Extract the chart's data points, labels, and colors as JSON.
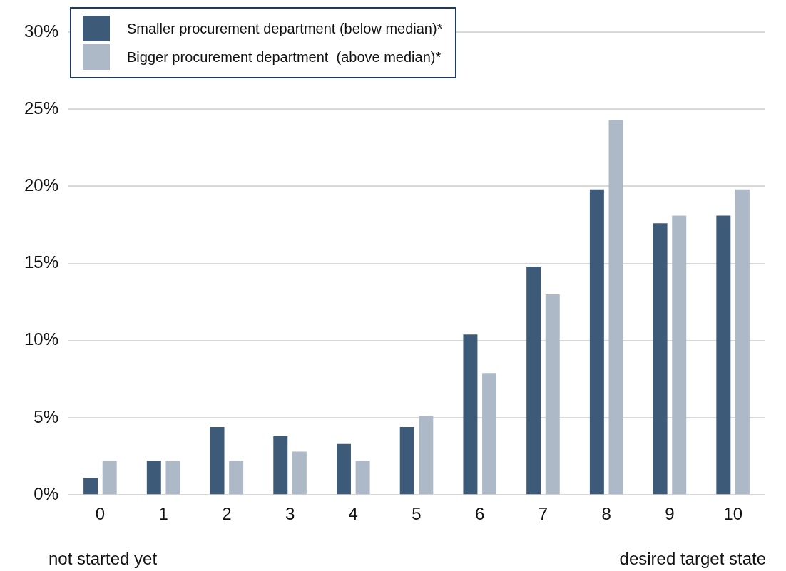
{
  "chart_data": {
    "type": "bar",
    "categories": [
      "0",
      "1",
      "2",
      "3",
      "4",
      "5",
      "6",
      "7",
      "8",
      "9",
      "10"
    ],
    "series": [
      {
        "name": "Smaller procurement department (below median)*",
        "color": "#3d5a78",
        "values": [
          1.1,
          2.2,
          4.4,
          3.8,
          3.3,
          4.4,
          10.4,
          14.8,
          19.8,
          17.6,
          18.1
        ]
      },
      {
        "name": "Bigger procurement department  (above median)*",
        "color": "#adb9c6",
        "values": [
          2.2,
          2.2,
          2.2,
          2.8,
          2.2,
          5.1,
          7.9,
          13.0,
          24.3,
          18.1,
          19.8
        ]
      }
    ],
    "ylim": [
      0,
      30
    ],
    "yticks": [
      {
        "value": 0,
        "label": "0%"
      },
      {
        "value": 5,
        "label": "5%"
      },
      {
        "value": 10,
        "label": "10%"
      },
      {
        "value": 15,
        "label": "15%"
      },
      {
        "value": 20,
        "label": "20%"
      },
      {
        "value": 25,
        "label": "25%"
      },
      {
        "value": 30,
        "label": "30%"
      }
    ],
    "grid": "y",
    "legend": "top left",
    "annotations": [
      "not started yet",
      "desired target state"
    ]
  }
}
